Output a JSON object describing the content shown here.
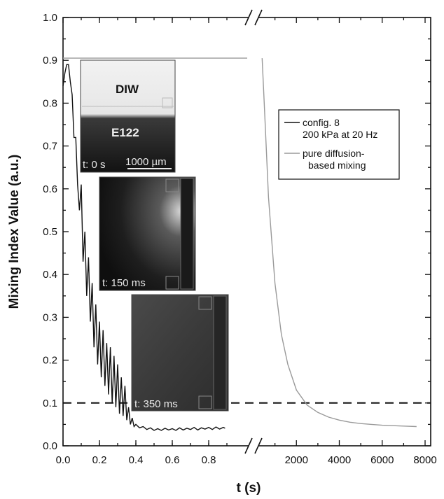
{
  "chart_data": {
    "type": "line",
    "xlabel": "t (s)",
    "ylabel": "Mixing Index Value (a.u.)",
    "broken_x_axis": true,
    "x_left": {
      "lim": [
        0,
        1.0
      ],
      "ticks": [
        "0.0",
        "0.2",
        "0.4",
        "0.6",
        "0.8"
      ]
    },
    "x_right": {
      "lim": [
        0,
        8000
      ],
      "ticks": [
        "2000",
        "4000",
        "6000",
        "8000"
      ]
    },
    "ylim": [
      0,
      1.0
    ],
    "yticks": [
      "0.0",
      "0.1",
      "0.2",
      "0.3",
      "0.4",
      "0.5",
      "0.6",
      "0.7",
      "0.8",
      "0.9",
      "1.0"
    ],
    "threshold_line": {
      "y": 0.1,
      "style": "dashed"
    },
    "legend": {
      "position": "right",
      "entries": [
        "config. 8\n200 kPa at 20 Hz",
        "pure diffusion-\nbased mixing"
      ]
    },
    "series": [
      {
        "name": "config. 8\n200 kPa at 20 Hz",
        "color": "#111111",
        "segment": "left",
        "x": [
          0.0,
          0.01,
          0.02,
          0.03,
          0.04,
          0.05,
          0.06,
          0.07,
          0.08,
          0.09,
          0.1,
          0.11,
          0.12,
          0.13,
          0.14,
          0.15,
          0.16,
          0.17,
          0.18,
          0.19,
          0.2,
          0.21,
          0.22,
          0.23,
          0.24,
          0.25,
          0.26,
          0.27,
          0.28,
          0.29,
          0.3,
          0.31,
          0.32,
          0.33,
          0.34,
          0.35,
          0.36,
          0.37,
          0.38,
          0.39,
          0.4,
          0.42,
          0.44,
          0.46,
          0.48,
          0.5,
          0.52,
          0.54,
          0.56,
          0.58,
          0.6,
          0.62,
          0.64,
          0.66,
          0.68,
          0.7,
          0.72,
          0.74,
          0.76,
          0.78,
          0.8,
          0.82,
          0.84,
          0.86,
          0.88,
          0.89
        ],
        "y": [
          0.84,
          0.87,
          0.89,
          0.89,
          0.85,
          0.82,
          0.72,
          0.72,
          0.61,
          0.55,
          0.61,
          0.43,
          0.5,
          0.35,
          0.44,
          0.29,
          0.38,
          0.23,
          0.33,
          0.19,
          0.29,
          0.16,
          0.27,
          0.14,
          0.24,
          0.12,
          0.23,
          0.1,
          0.21,
          0.09,
          0.19,
          0.075,
          0.16,
          0.07,
          0.14,
          0.06,
          0.09,
          0.05,
          0.065,
          0.045,
          0.05,
          0.042,
          0.045,
          0.038,
          0.042,
          0.036,
          0.04,
          0.036,
          0.041,
          0.037,
          0.04,
          0.036,
          0.042,
          0.037,
          0.041,
          0.038,
          0.043,
          0.037,
          0.042,
          0.039,
          0.043,
          0.038,
          0.044,
          0.039,
          0.043,
          0.041
        ]
      },
      {
        "name": "pure diffusion-\nbased mixing",
        "color": "#9a9a9a",
        "segment": "both",
        "x_left": [
          0.0,
          0.89
        ],
        "y_left": [
          0.905,
          0.905
        ],
        "x": [
          400,
          500,
          700,
          1000,
          1300,
          1600,
          2000,
          2500,
          3000,
          3500,
          4000,
          4500,
          5000,
          5500,
          6000,
          6500,
          7000,
          7600
        ],
        "y": [
          0.905,
          0.8,
          0.58,
          0.38,
          0.26,
          0.19,
          0.13,
          0.095,
          0.078,
          0.067,
          0.06,
          0.055,
          0.052,
          0.05,
          0.048,
          0.047,
          0.046,
          0.045
        ]
      }
    ],
    "insets": [
      {
        "time_label": "t: 0 s",
        "top_label": "DIW",
        "bottom_label": "E122",
        "scale_label": "1000 µm"
      },
      {
        "time_label": "t: 150 ms"
      },
      {
        "time_label": "t: 350 ms"
      }
    ]
  }
}
